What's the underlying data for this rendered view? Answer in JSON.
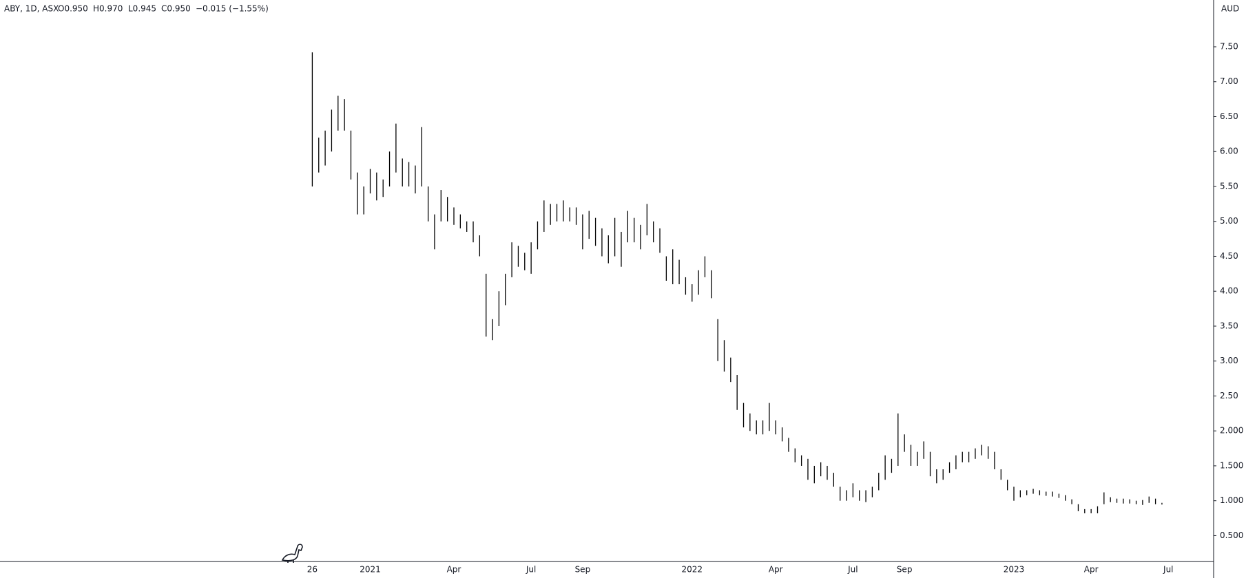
{
  "chart_data": {
    "type": "ohlc",
    "legend": {
      "symbol": "ABY, 1D, ASX",
      "open": "O0.950",
      "high": "H0.970",
      "low": "L0.945",
      "close": "C0.950",
      "change": "−0.015 (−1.55%)"
    },
    "currency": "AUD",
    "color": "#000000",
    "categories": [
      "26",
      null,
      null,
      null,
      null,
      null,
      null,
      null,
      null,
      "2021",
      null,
      null,
      null,
      null,
      null,
      null,
      null,
      null,
      null,
      null,
      null,
      null,
      "Apr",
      null,
      null,
      null,
      null,
      null,
      null,
      null,
      null,
      null,
      null,
      null,
      "Jul",
      null,
      null,
      null,
      null,
      null,
      null,
      null,
      "Sep",
      null,
      null,
      null,
      null,
      null,
      null,
      null,
      null,
      null,
      null,
      null,
      null,
      null,
      null,
      null,
      null,
      "2022",
      null,
      null,
      null,
      null,
      null,
      null,
      null,
      null,
      null,
      null,
      null,
      null,
      "Apr",
      null,
      null,
      null,
      null,
      null,
      null,
      null,
      null,
      null,
      null,
      null,
      "Jul",
      null,
      null,
      null,
      null,
      null,
      null,
      null,
      "Sep",
      null,
      null,
      null,
      null,
      null,
      null,
      null,
      null,
      null,
      null,
      null,
      null,
      null,
      null,
      null,
      null,
      "2023",
      null,
      null,
      null,
      null,
      null,
      null,
      null,
      null,
      null,
      null,
      null,
      "Apr",
      null,
      null,
      null,
      null,
      null,
      null,
      null,
      null,
      null,
      null,
      null,
      "Jul"
    ],
    "high": [
      7.42,
      6.2,
      6.3,
      6.6,
      6.8,
      6.75,
      6.3,
      5.7,
      5.5,
      5.75,
      5.7,
      5.6,
      6.0,
      6.4,
      5.9,
      5.85,
      5.8,
      6.35,
      5.5,
      5.1,
      5.45,
      5.35,
      5.2,
      5.1,
      5.0,
      5.0,
      4.8,
      4.25,
      3.6,
      4.0,
      4.25,
      4.7,
      4.65,
      4.55,
      4.7,
      5.0,
      5.3,
      5.25,
      5.25,
      5.3,
      5.2,
      5.2,
      5.1,
      5.15,
      5.05,
      4.9,
      4.8,
      5.05,
      4.85,
      5.15,
      5.05,
      4.95,
      5.25,
      5.0,
      4.9,
      4.5,
      4.6,
      4.45,
      4.2,
      4.1,
      4.3,
      4.5,
      4.3,
      3.6,
      3.3,
      3.05,
      2.8,
      2.4,
      2.25,
      2.15,
      2.15,
      2.4,
      2.15,
      2.05,
      1.9,
      1.75,
      1.65,
      1.6,
      1.5,
      1.55,
      1.5,
      1.4,
      1.2,
      1.15,
      1.25,
      1.15,
      1.15,
      1.2,
      1.4,
      1.65,
      1.6,
      2.25,
      1.95,
      1.8,
      1.7,
      1.85,
      1.7,
      1.45,
      1.45,
      1.55,
      1.65,
      1.7,
      1.7,
      1.75,
      1.8,
      1.78,
      1.7,
      1.45,
      1.3,
      1.2,
      1.15,
      1.15,
      1.17,
      1.15,
      1.13,
      1.13,
      1.1,
      1.08,
      1.02,
      0.95,
      0.88,
      0.88,
      0.92,
      1.12,
      1.05,
      1.03,
      1.03,
      1.02,
      1.0,
      1.01,
      1.06,
      1.03,
      0.97,
      null
    ],
    "low": [
      5.5,
      5.7,
      5.8,
      6.0,
      6.3,
      6.3,
      5.6,
      5.1,
      5.1,
      5.4,
      5.3,
      5.35,
      5.5,
      5.7,
      5.5,
      5.5,
      5.4,
      5.5,
      5.0,
      4.6,
      5.0,
      5.0,
      4.95,
      4.9,
      4.85,
      4.7,
      4.5,
      3.35,
      3.3,
      3.5,
      3.8,
      4.2,
      4.35,
      4.3,
      4.25,
      4.6,
      4.85,
      4.95,
      5.0,
      5.0,
      5.0,
      4.95,
      4.6,
      4.75,
      4.65,
      4.5,
      4.4,
      4.5,
      4.35,
      4.7,
      4.7,
      4.6,
      4.8,
      4.7,
      4.55,
      4.15,
      4.1,
      4.1,
      3.95,
      3.85,
      3.95,
      4.2,
      3.9,
      3.0,
      2.85,
      2.7,
      2.3,
      2.05,
      2.0,
      1.95,
      1.95,
      2.0,
      1.95,
      1.85,
      1.7,
      1.55,
      1.5,
      1.3,
      1.25,
      1.35,
      1.3,
      1.2,
      1.0,
      1.0,
      1.05,
      1.0,
      0.98,
      1.05,
      1.15,
      1.3,
      1.4,
      1.5,
      1.7,
      1.5,
      1.5,
      1.6,
      1.35,
      1.25,
      1.3,
      1.4,
      1.45,
      1.55,
      1.55,
      1.6,
      1.65,
      1.6,
      1.45,
      1.3,
      1.15,
      1.0,
      1.05,
      1.08,
      1.1,
      1.08,
      1.07,
      1.06,
      1.04,
      1.0,
      0.95,
      0.85,
      0.82,
      0.82,
      0.82,
      0.95,
      0.98,
      0.97,
      0.96,
      0.96,
      0.95,
      0.94,
      0.97,
      0.95,
      0.945,
      null
    ],
    "ylim": [
      0.13,
      8.17
    ],
    "yticks": [
      {
        "value": 0.5,
        "label": "0.500"
      },
      {
        "value": 1,
        "label": "1.000"
      },
      {
        "value": 1.5,
        "label": "1.500"
      },
      {
        "value": 2,
        "label": "2.000"
      },
      {
        "value": 2.5,
        "label": "2.50"
      },
      {
        "value": 3,
        "label": "3.00"
      },
      {
        "value": 3.5,
        "label": "3.50"
      },
      {
        "value": 4,
        "label": "4.00"
      },
      {
        "value": 4.5,
        "label": "4.50"
      },
      {
        "value": 5,
        "label": "5.00"
      },
      {
        "value": 5.5,
        "label": "5.50"
      },
      {
        "value": 6,
        "label": "6.00"
      },
      {
        "value": 6.5,
        "label": "6.50"
      },
      {
        "value": 7,
        "label": "7.00"
      },
      {
        "value": 7.5,
        "label": "7.50"
      }
    ],
    "grid": false
  }
}
